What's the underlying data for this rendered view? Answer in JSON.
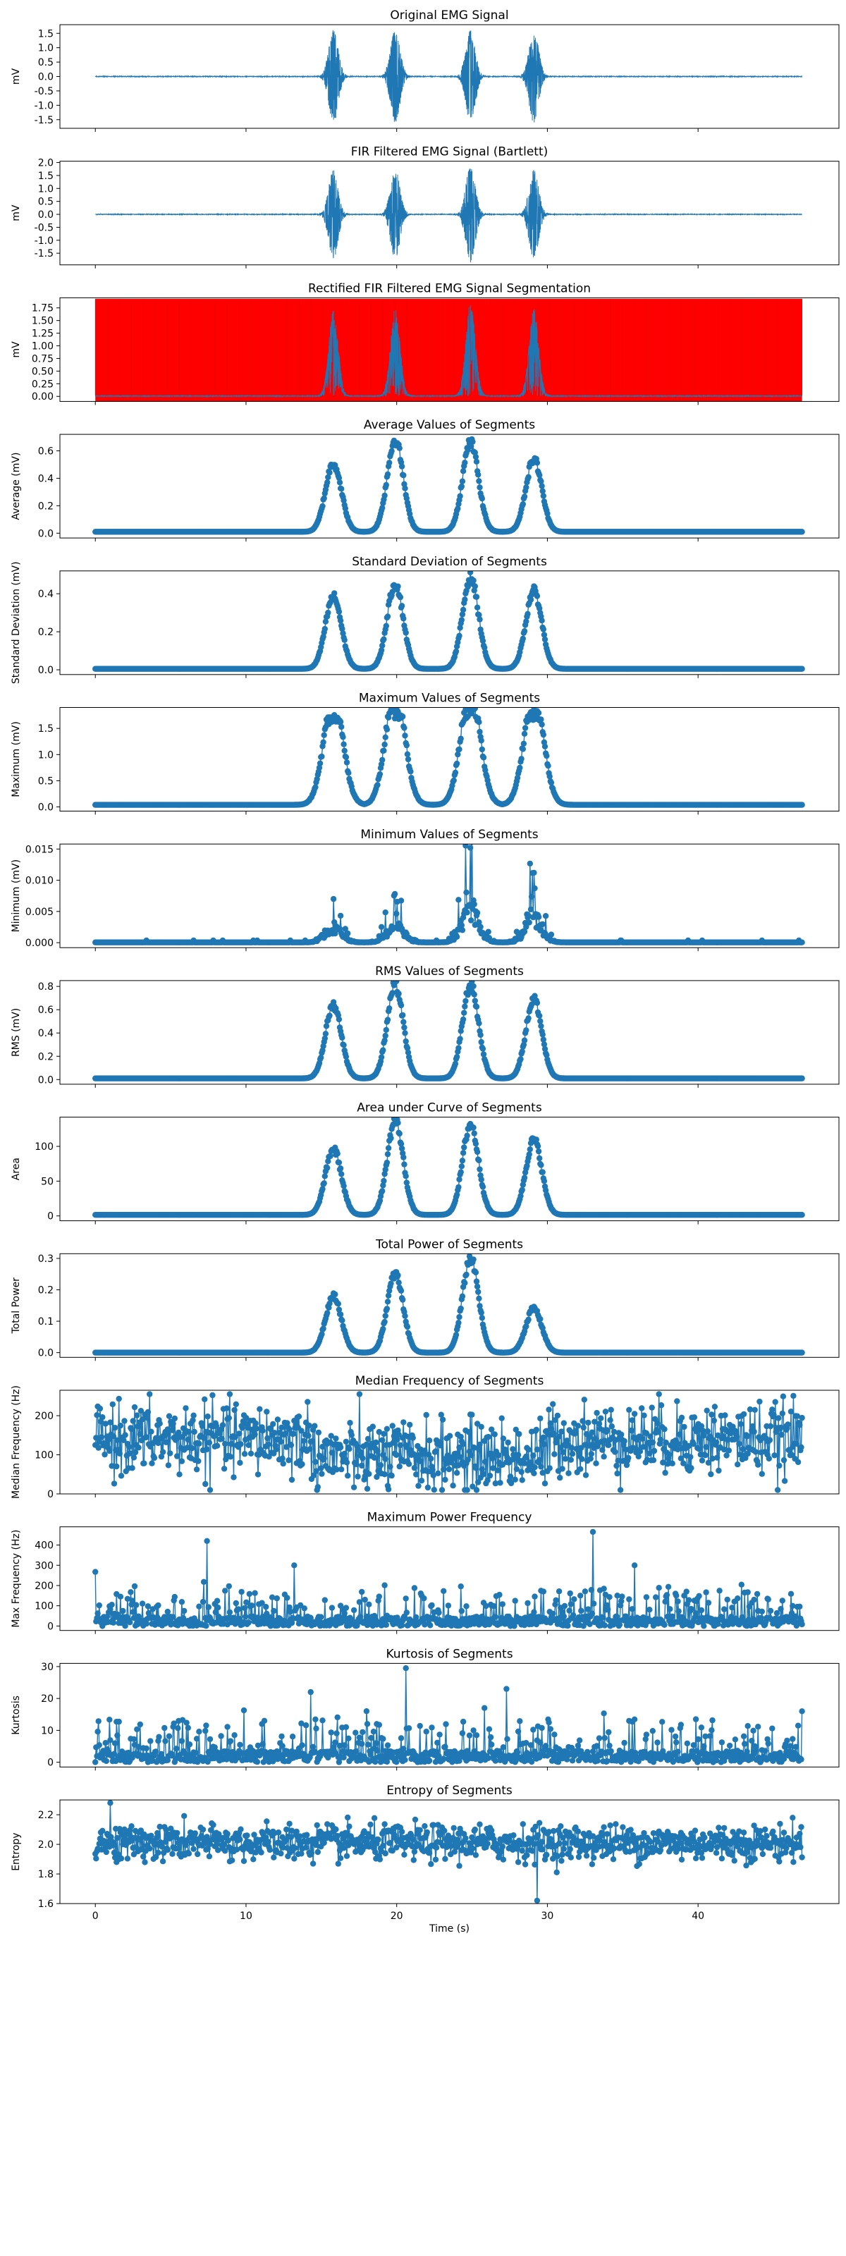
{
  "figure": {
    "accent": "#1f77b4",
    "segment_color": "#ff0000",
    "xlabel": "Time (s)",
    "xticks": [
      0,
      10,
      20,
      30,
      40
    ],
    "xlim": [
      -2.35,
      49.35
    ]
  },
  "chart_data": [
    {
      "type": "line",
      "title": "Original EMG Signal",
      "ylabel": "mV",
      "ylim": [
        -1.8,
        1.8
      ],
      "yticks": [
        -1.5,
        -1.0,
        -0.5,
        0.0,
        0.5,
        1.0,
        1.5
      ],
      "tick_decimals": 1,
      "bursts": [
        {
          "center": 15.8,
          "peak": 1.62
        },
        {
          "center": 19.9,
          "peak": 1.62
        },
        {
          "center": 24.9,
          "peak": 1.62
        },
        {
          "center": 29.1,
          "peak": 1.62
        }
      ],
      "grid": false
    },
    {
      "type": "line",
      "title": "FIR Filtered EMG Signal (Bartlett)",
      "ylabel": "mV",
      "ylim": [
        -1.95,
        2.05
      ],
      "yticks": [
        -1.5,
        -1.0,
        -0.5,
        0.0,
        0.5,
        1.0,
        1.5,
        2.0
      ],
      "tick_decimals": 1,
      "bursts": [
        {
          "center": 15.8,
          "peak": 1.72
        },
        {
          "center": 19.9,
          "peak": 1.75
        },
        {
          "center": 24.9,
          "peak": 1.85
        },
        {
          "center": 29.1,
          "peak": 1.72
        }
      ],
      "grid": false
    },
    {
      "type": "area",
      "title": "Rectified FIR Filtered EMG Signal Segmentation",
      "ylabel": "mV",
      "ylim": [
        -0.1,
        1.95
      ],
      "yticks": [
        0.0,
        0.25,
        0.5,
        0.75,
        1.0,
        1.25,
        1.5,
        1.75
      ],
      "tick_decimals": 2,
      "segment_span": [
        0,
        46.9
      ],
      "segment_top": 1.93,
      "bursts": [
        {
          "center": 15.8,
          "peak": 1.72
        },
        {
          "center": 19.9,
          "peak": 1.75
        },
        {
          "center": 24.9,
          "peak": 1.85
        },
        {
          "center": 29.1,
          "peak": 1.75
        }
      ],
      "grid": false
    },
    {
      "type": "line",
      "title": "Average Values of Segments",
      "ylabel": "Average (mV)",
      "ylim": [
        -0.035,
        0.72
      ],
      "yticks": [
        0.0,
        0.2,
        0.4,
        0.6
      ],
      "tick_decimals": 1,
      "bursts": [
        {
          "center": 15.8,
          "peak": 0.5
        },
        {
          "center": 19.9,
          "peak": 0.67
        },
        {
          "center": 24.9,
          "peak": 0.65
        },
        {
          "center": 29.1,
          "peak": 0.53
        }
      ],
      "baseline": 0.01,
      "grid": false
    },
    {
      "type": "line",
      "title": "Standard Deviation of Segments",
      "ylabel": "Standard Deviation (mV)",
      "ylim": [
        -0.025,
        0.52
      ],
      "yticks": [
        0.0,
        0.2,
        0.4
      ],
      "tick_decimals": 1,
      "bursts": [
        {
          "center": 15.8,
          "peak": 0.38
        },
        {
          "center": 19.9,
          "peak": 0.45
        },
        {
          "center": 24.9,
          "peak": 0.48
        },
        {
          "center": 29.1,
          "peak": 0.41
        }
      ],
      "baseline": 0.005,
      "grid": false
    },
    {
      "type": "line",
      "title": "Maximum Values of Segments",
      "ylabel": "Maximum (mV)",
      "ylim": [
        -0.08,
        1.9
      ],
      "yticks": [
        0.0,
        0.5,
        1.0,
        1.5
      ],
      "tick_decimals": 1,
      "bursts": [
        {
          "center": 15.8,
          "peak": 1.65
        },
        {
          "center": 19.9,
          "peak": 1.75
        },
        {
          "center": 24.9,
          "peak": 1.78
        },
        {
          "center": 29.1,
          "peak": 1.72
        }
      ],
      "baseline": 0.04,
      "plateau": true,
      "grid": false
    },
    {
      "type": "line",
      "title": "Minimum Values of Segments",
      "ylabel": "Minimum (mV)",
      "ylim": [
        -0.0008,
        0.0158
      ],
      "yticks": [
        0.0,
        0.005,
        0.01,
        0.015
      ],
      "tick_decimals": 3,
      "bursts": [
        {
          "center": 15.8,
          "peak": 0.007
        },
        {
          "center": 19.9,
          "peak": 0.0078
        },
        {
          "center": 24.9,
          "peak": 0.0152
        },
        {
          "center": 29.1,
          "peak": 0.0112
        }
      ],
      "baseline": 5e-05,
      "spiky": true,
      "grid": false
    },
    {
      "type": "line",
      "title": "RMS Values of Segments",
      "ylabel": "RMS (mV)",
      "ylim": [
        -0.04,
        0.85
      ],
      "yticks": [
        0.0,
        0.2,
        0.4,
        0.6,
        0.8
      ],
      "tick_decimals": 1,
      "bursts": [
        {
          "center": 15.8,
          "peak": 0.63
        },
        {
          "center": 19.9,
          "peak": 0.8
        },
        {
          "center": 24.9,
          "peak": 0.8
        },
        {
          "center": 29.1,
          "peak": 0.68
        }
      ],
      "baseline": 0.01,
      "grid": false
    },
    {
      "type": "line",
      "title": "Area under Curve of Segments",
      "ylabel": "Area",
      "ylim": [
        -7,
        142
      ],
      "yticks": [
        0,
        50,
        100
      ],
      "tick_decimals": 0,
      "bursts": [
        {
          "center": 15.8,
          "peak": 95
        },
        {
          "center": 19.9,
          "peak": 135
        },
        {
          "center": 24.9,
          "peak": 130
        },
        {
          "center": 29.1,
          "peak": 108
        }
      ],
      "baseline": 1.5,
      "grid": false
    },
    {
      "type": "line",
      "title": "Total Power of Segments",
      "ylabel": "Total Power",
      "ylim": [
        -0.015,
        0.315
      ],
      "yticks": [
        0.0,
        0.1,
        0.2,
        0.3
      ],
      "tick_decimals": 1,
      "bursts": [
        {
          "center": 15.8,
          "peak": 0.18
        },
        {
          "center": 19.9,
          "peak": 0.25
        },
        {
          "center": 24.9,
          "peak": 0.3
        },
        {
          "center": 29.1,
          "peak": 0.14
        }
      ],
      "baseline": 0.0,
      "grid": false
    },
    {
      "type": "scatter",
      "title": "Median Frequency of Segments",
      "ylabel": "Median Frequency (Hz)",
      "ylim": [
        0,
        265
      ],
      "yticks": [
        0,
        100,
        200
      ],
      "tick_decimals": 0,
      "noise": {
        "mean": 140,
        "spread": 45,
        "low_region": [
          14.5,
          30
        ],
        "low_mean": 95,
        "min": 10,
        "max": 255
      },
      "grid": false
    },
    {
      "type": "scatter",
      "title": "Maximum Power Frequency",
      "ylabel": "Max Frequency (Hz)",
      "ylim": [
        -22,
        490
      ],
      "yticks": [
        0,
        100,
        200,
        300,
        400
      ],
      "tick_decimals": 0,
      "noise": {
        "mean": 40,
        "spread": 60,
        "skew": true,
        "min": 0,
        "max": 470,
        "spikes": [
          {
            "x": 7.4,
            "y": 420
          },
          {
            "x": 33.0,
            "y": 465
          },
          {
            "x": 35.8,
            "y": 300
          },
          {
            "x": 13.2,
            "y": 300
          }
        ]
      },
      "grid": false
    },
    {
      "type": "scatter",
      "title": "Kurtosis of Segments",
      "ylabel": "Kurtosis",
      "ylim": [
        -1.5,
        31
      ],
      "yticks": [
        0,
        10,
        20,
        30
      ],
      "tick_decimals": 0,
      "noise": {
        "mean": 3,
        "spread": 2.5,
        "skew": true,
        "min": 0,
        "max": 30,
        "spikes": [
          {
            "x": 14.3,
            "y": 22
          },
          {
            "x": 20.6,
            "y": 29.5
          },
          {
            "x": 27.3,
            "y": 23
          },
          {
            "x": 25.8,
            "y": 17
          },
          {
            "x": 18.0,
            "y": 16
          }
        ]
      },
      "grid": false
    },
    {
      "type": "scatter",
      "title": "Entropy of Segments",
      "ylabel": "Entropy",
      "ylim": [
        1.6,
        2.3
      ],
      "yticks": [
        1.6,
        1.8,
        2.0,
        2.2
      ],
      "tick_decimals": 1,
      "noise": {
        "mean": 2.01,
        "spread": 0.06,
        "min": 1.62,
        "max": 2.28,
        "spikes": [
          {
            "x": 1.0,
            "y": 2.28
          },
          {
            "x": 29.3,
            "y": 1.62
          }
        ]
      },
      "grid": false,
      "show_xlabels": true
    }
  ]
}
